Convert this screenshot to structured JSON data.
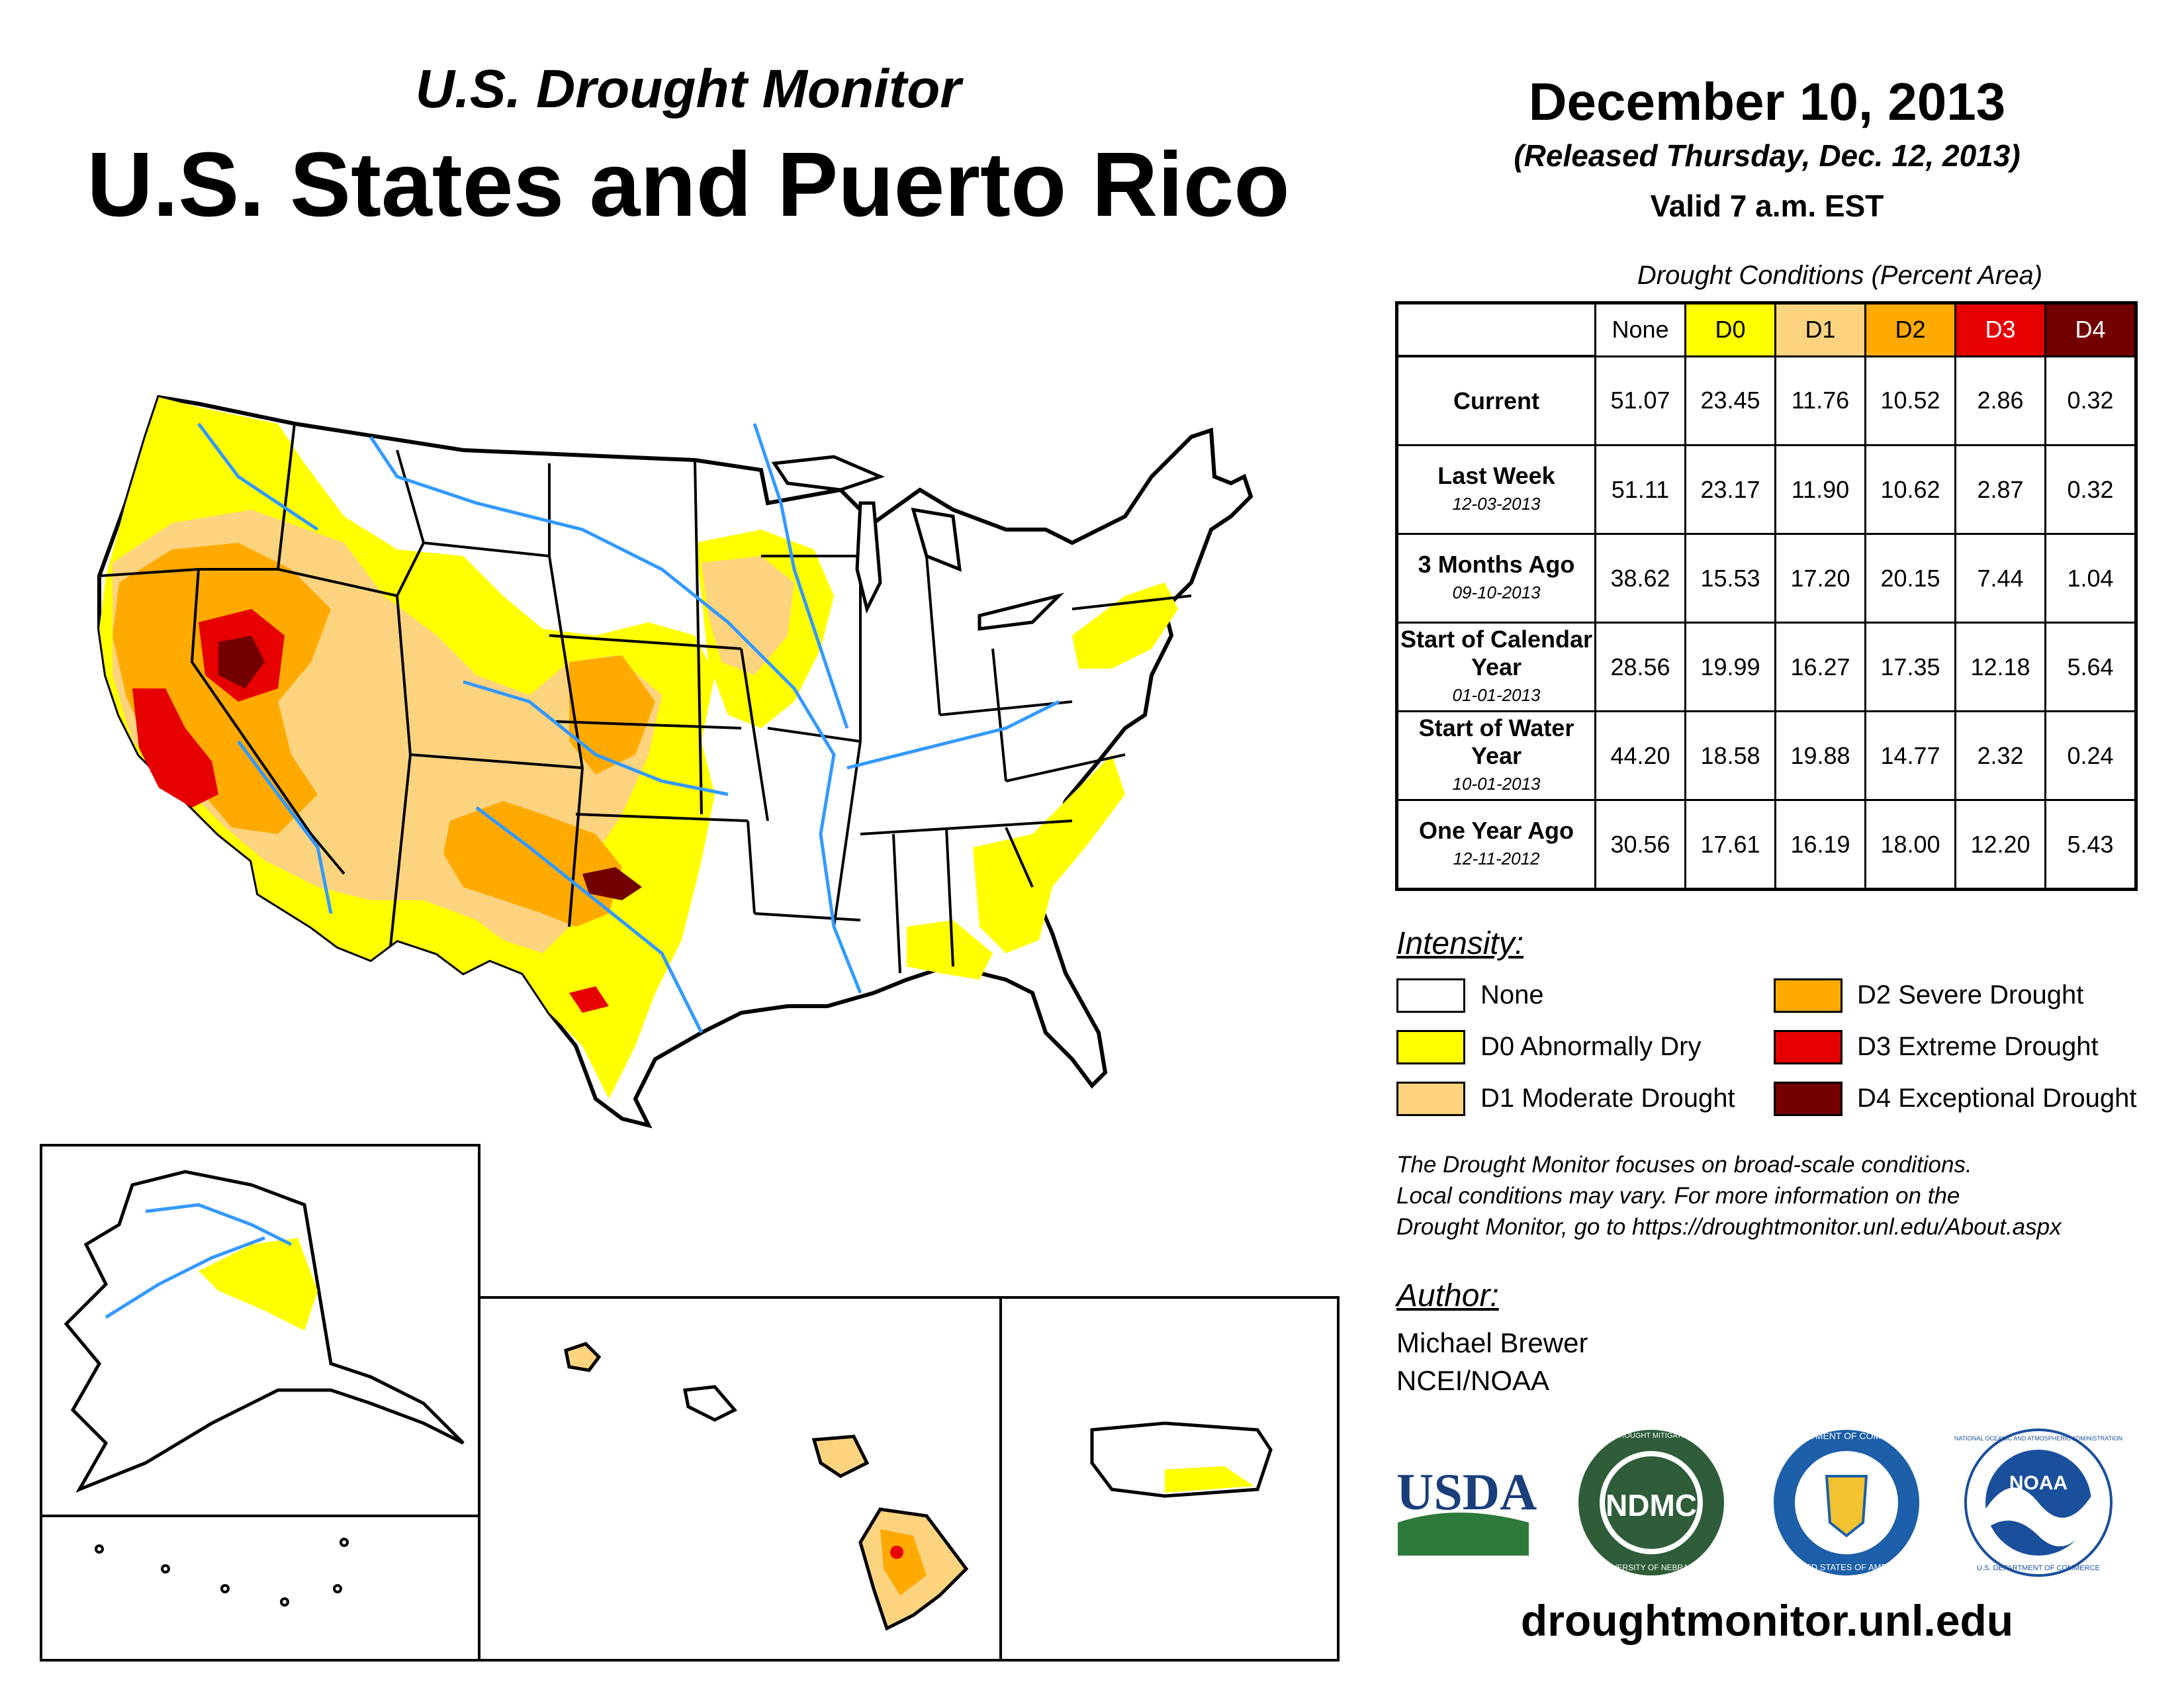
{
  "header": {
    "subtitle": "U.S. Drought Monitor",
    "title": "U.S. States and Puerto Rico",
    "date": "December 10, 2013",
    "released": "(Released Thursday, Dec. 12, 2013)",
    "valid": "Valid 7 a.m. EST"
  },
  "table": {
    "caption": "Drought Conditions (Percent Area)",
    "columns": [
      "None",
      "D0",
      "D1",
      "D2",
      "D3",
      "D4"
    ],
    "column_colors": [
      "#ffffff",
      "#ffff00",
      "#fcd37f",
      "#ffaa00",
      "#e60000",
      "#730000"
    ],
    "rows": [
      {
        "label": "Current",
        "date": "",
        "values": [
          "51.07",
          "23.45",
          "11.76",
          "10.52",
          "2.86",
          "0.32"
        ]
      },
      {
        "label": "Last Week",
        "date": "12-03-2013",
        "values": [
          "51.11",
          "23.17",
          "11.90",
          "10.62",
          "2.87",
          "0.32"
        ]
      },
      {
        "label": "3 Months Ago",
        "date": "09-10-2013",
        "values": [
          "38.62",
          "15.53",
          "17.20",
          "20.15",
          "7.44",
          "1.04"
        ]
      },
      {
        "label": "Start of Calendar Year",
        "date": "01-01-2013",
        "values": [
          "28.56",
          "19.99",
          "16.27",
          "17.35",
          "12.18",
          "5.64"
        ]
      },
      {
        "label": "Start of Water Year",
        "date": "10-01-2013",
        "values": [
          "44.20",
          "18.58",
          "19.88",
          "14.77",
          "2.32",
          "0.24"
        ]
      },
      {
        "label": "One Year Ago",
        "date": "12-11-2012",
        "values": [
          "30.56",
          "17.61",
          "16.19",
          "18.00",
          "12.20",
          "5.43"
        ]
      }
    ]
  },
  "legend": {
    "title": "Intensity:",
    "items": [
      {
        "label": "None",
        "color": "#ffffff"
      },
      {
        "label": "D0 Abnormally Dry",
        "color": "#ffff00"
      },
      {
        "label": "D1 Moderate Drought",
        "color": "#fcd37f"
      },
      {
        "label": "D2 Severe Drought",
        "color": "#ffaa00"
      },
      {
        "label": "D3 Extreme Drought",
        "color": "#e60000"
      },
      {
        "label": "D4 Exceptional Drought",
        "color": "#730000"
      }
    ]
  },
  "note": [
    "The Drought Monitor focuses on broad-scale conditions.",
    "Local conditions may vary. For more information on the",
    "Drought Monitor, go to https://droughtmonitor.unl.edu/About.aspx"
  ],
  "author": {
    "title": "Author:",
    "name": "Michael Brewer",
    "org": "NCEI/NOAA"
  },
  "logos": {
    "usda": "USDA",
    "ndmc": "NDMC",
    "ndmc_ring": "NATIONAL DROUGHT MITIGATION CENTER",
    "ndmc_ring_bottom": "UNIVERSITY OF NEBRASKA",
    "doc_ring": "DEPARTMENT OF COMMERCE",
    "doc_ring_bottom": "UNITED STATES OF AMERICA",
    "noaa": "NOAA",
    "noaa_ring": "NATIONAL OCEANIC AND ATMOSPHERIC ADMINISTRATION",
    "noaa_ring_bottom": "U.S. DEPARTMENT OF COMMERCE"
  },
  "footer_url": "droughtmonitor.unl.edu",
  "colors": {
    "river": "#3399ff",
    "usda_blue": "#1a3e7a",
    "usda_green": "#2d7a3a",
    "ndmc_green": "#2f5d3a",
    "doc_blue": "#1d5fa8",
    "noaa_blue": "#1a4f9c"
  }
}
